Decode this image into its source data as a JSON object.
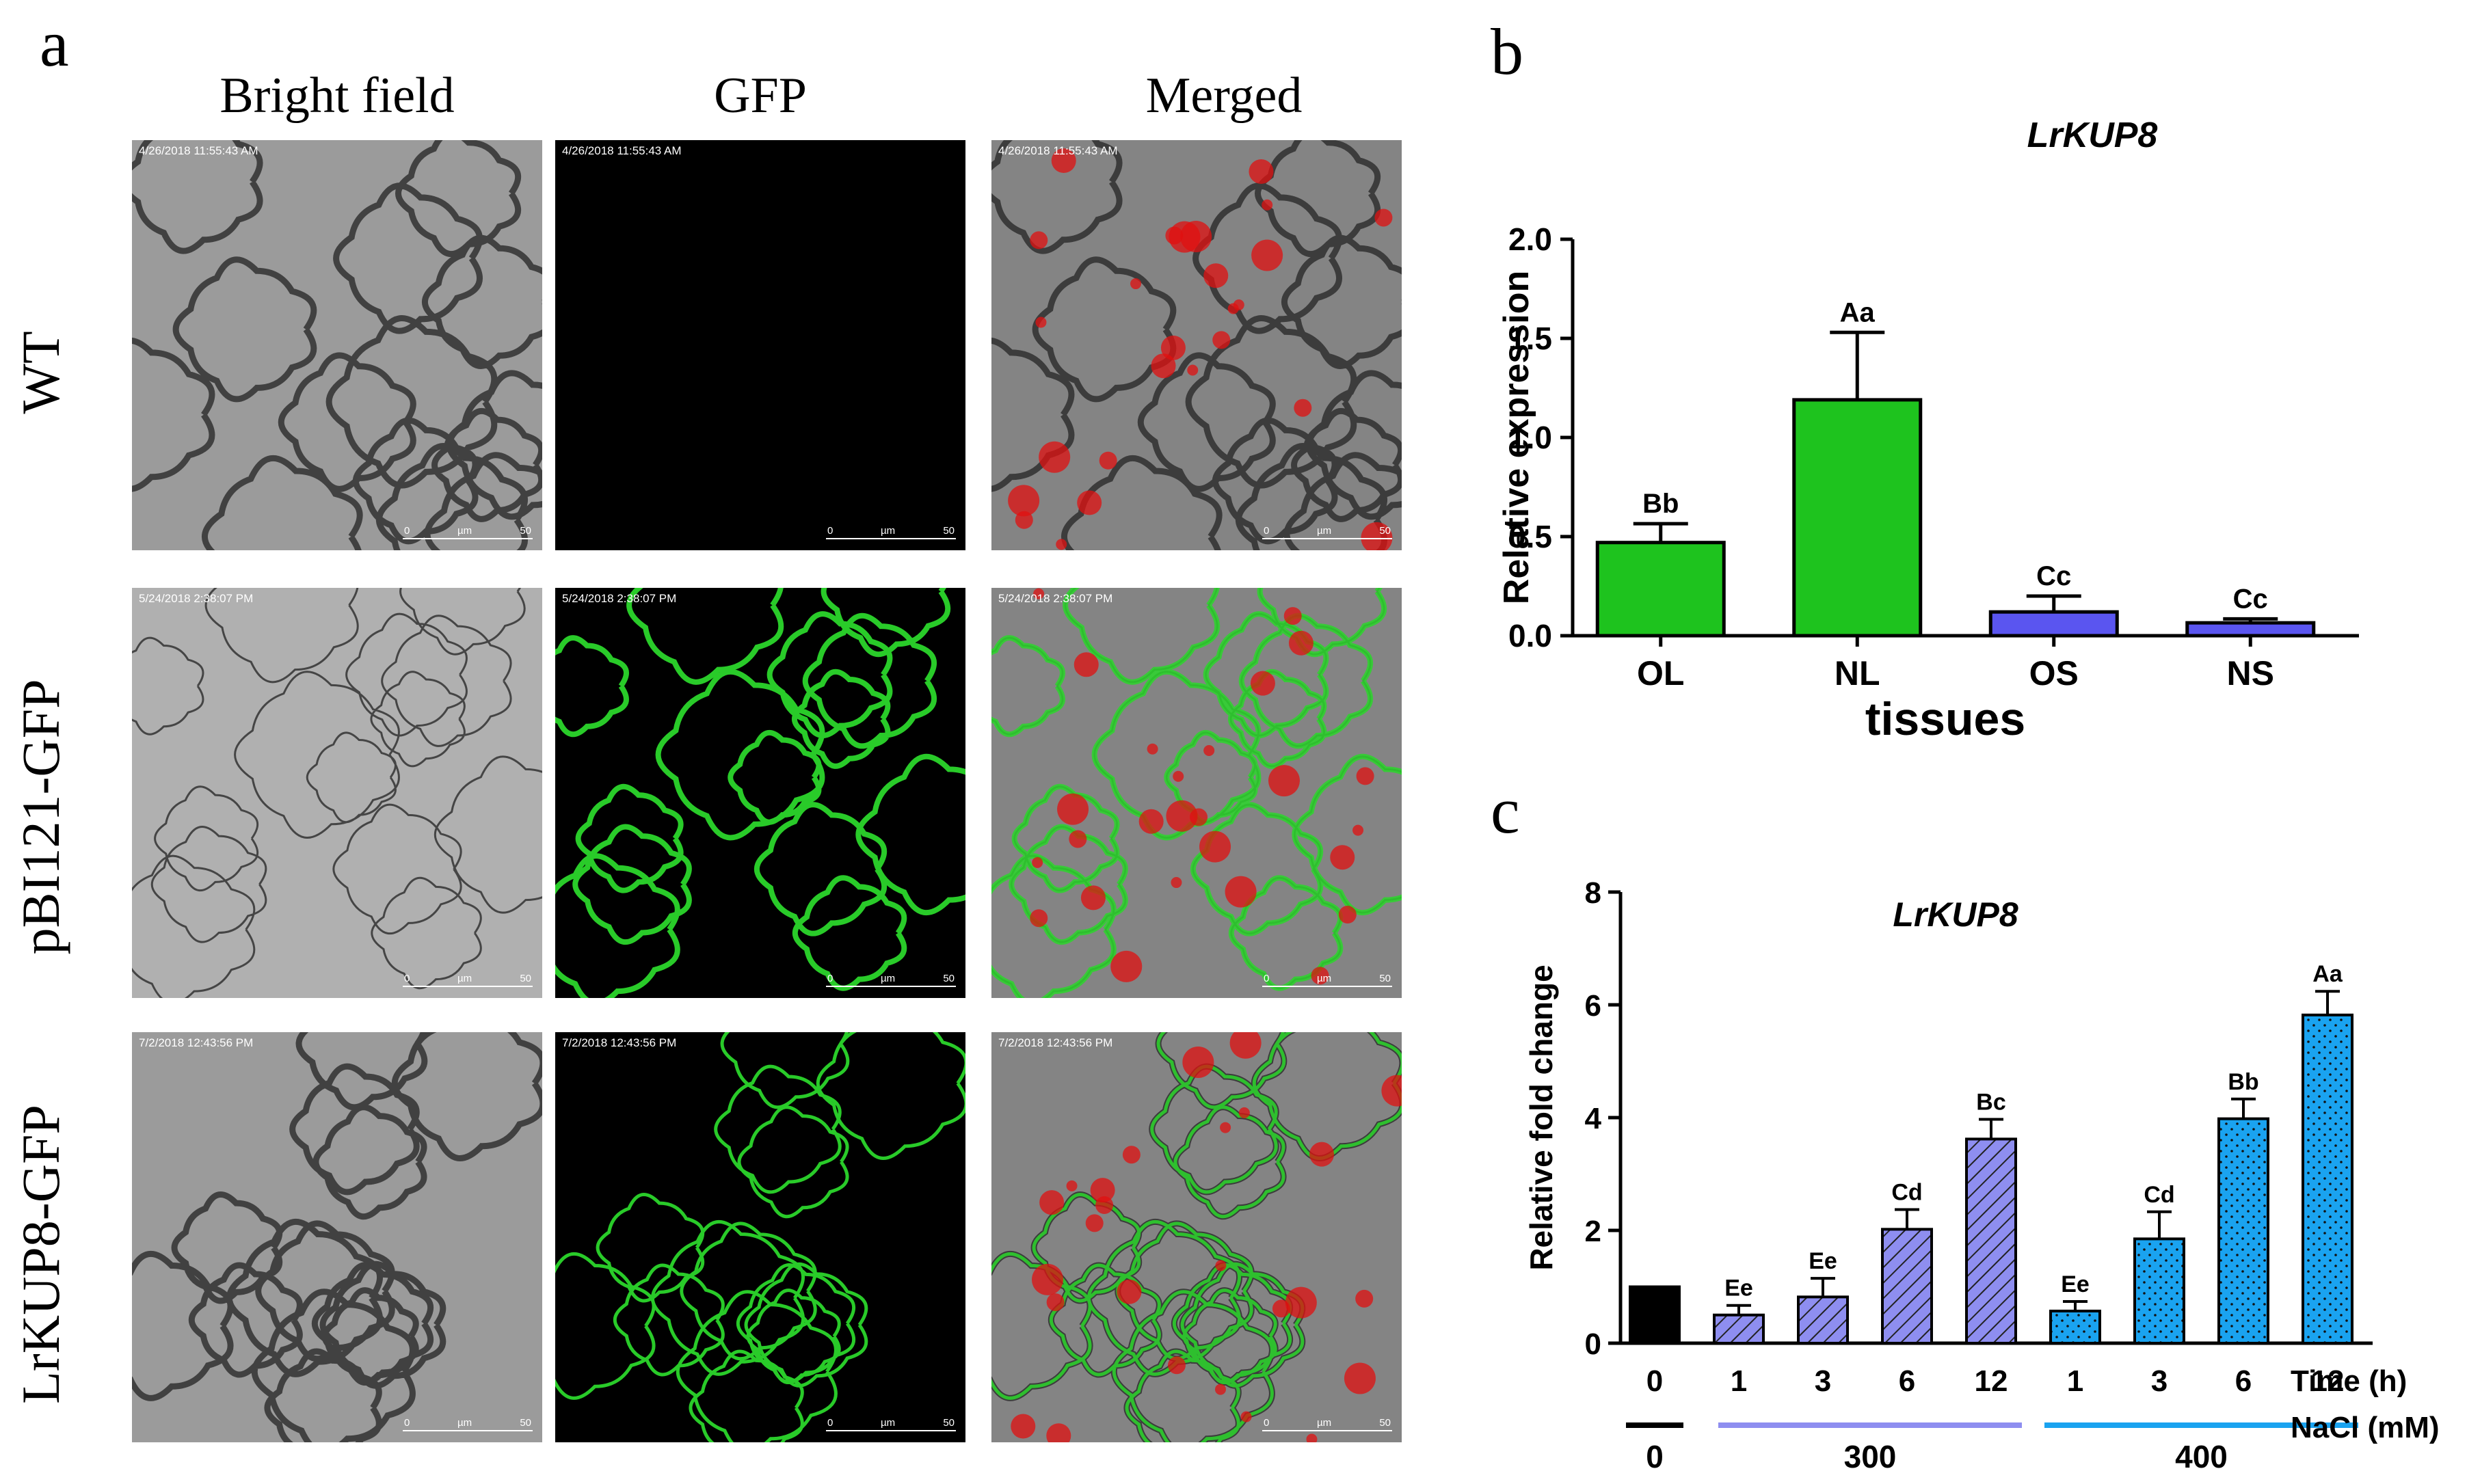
{
  "panel_a": {
    "letter": "a",
    "columns": [
      "Bright field",
      "GFP",
      "Merged"
    ],
    "rows": [
      {
        "label": "WT",
        "timestamp": "4/26/2018 11:55:43 AM"
      },
      {
        "label": "pBI121-GFP",
        "timestamp": "5/24/2018 2:38:07 PM"
      },
      {
        "label": "LrKUP8-GFP",
        "timestamp": "7/2/2018 12:43:56 PM"
      }
    ],
    "scale_bar": {
      "start": "0",
      "unit": "µm",
      "end": "50"
    },
    "colors": {
      "green": "#2bd62b",
      "red": "#e01010",
      "brightfield": "#9a9a9a"
    }
  },
  "chart_data": [
    {
      "panel": "b",
      "type": "bar",
      "title": "LrKUP8",
      "xlabel": "tissues",
      "ylabel": "Relative expression",
      "ylim": [
        0,
        2.0
      ],
      "yticks": [
        "0.0",
        "0.5",
        "1.0",
        "1.5",
        "2.0"
      ],
      "categories": [
        "OL",
        "NL",
        "OS",
        "NS"
      ],
      "values": [
        0.47,
        1.19,
        0.12,
        0.065
      ],
      "errors": [
        0.095,
        0.34,
        0.08,
        0.02
      ],
      "labels": [
        "Bb",
        "Aa",
        "Cc",
        "Cc"
      ],
      "colors": [
        "#1ec31e",
        "#1ec31e",
        "#5a55f0",
        "#5a55f0"
      ]
    },
    {
      "panel": "c",
      "type": "bar",
      "title": "LrKUP8",
      "ylabel": "Relative fold change",
      "ylim": [
        0,
        8
      ],
      "yticks": [
        "0",
        "2",
        "4",
        "6",
        "8"
      ],
      "x_axis_name": "Time (h)",
      "group_axis_name": "NaCl (mM)",
      "categories": [
        "0",
        "1",
        "3",
        "6",
        "12",
        "1",
        "3",
        "6",
        "12"
      ],
      "values": [
        1.0,
        0.5,
        0.82,
        2.02,
        3.62,
        0.57,
        1.85,
        3.98,
        5.82
      ],
      "errors": [
        0.0,
        0.17,
        0.33,
        0.35,
        0.35,
        0.17,
        0.48,
        0.35,
        0.42
      ],
      "labels": [
        "",
        "Ee",
        "Ee",
        "Cd",
        "Bc",
        "Ee",
        "Cd",
        "Bb",
        "Aa"
      ],
      "groups": [
        {
          "label": "0",
          "color": "#000000"
        },
        {
          "label": "300",
          "color": "#8e8ef0"
        },
        {
          "label": "400",
          "color": "#1aa3f0"
        }
      ],
      "bar_styles": [
        "solid",
        "hatch",
        "hatch",
        "hatch",
        "hatch",
        "dots",
        "dots",
        "dots",
        "dots"
      ]
    }
  ]
}
